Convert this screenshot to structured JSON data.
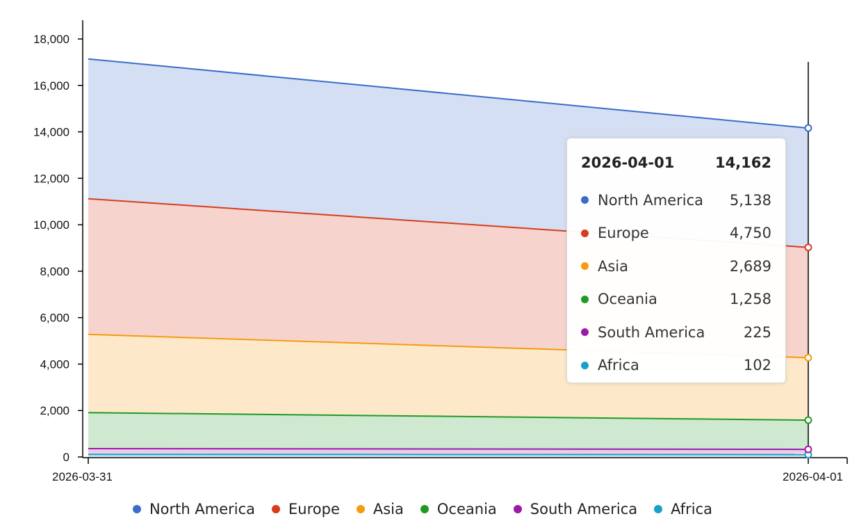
{
  "chart_data": {
    "type": "area",
    "stacked": true,
    "x": [
      "2026-03-31",
      "2026-04-01"
    ],
    "y_ticks": [
      "0",
      "2,000",
      "4,000",
      "6,000",
      "8,000",
      "10,000",
      "12,000",
      "14,000",
      "16,000",
      "18,000"
    ],
    "ylim": [
      0,
      18000
    ],
    "grid": false,
    "legend_position": "bottom",
    "series": [
      {
        "name": "Africa",
        "color": "#1a9fc9",
        "values": [
          110,
          102
        ]
      },
      {
        "name": "South America",
        "color": "#9c1aa6",
        "values": [
          250,
          225
        ]
      },
      {
        "name": "Oceania",
        "color": "#1f9a26",
        "values": [
          1550,
          1258
        ]
      },
      {
        "name": "Asia",
        "color": "#f59b0f",
        "values": [
          3370,
          2689
        ]
      },
      {
        "name": "Europe",
        "color": "#d63d1d",
        "values": [
          5840,
          4750
        ]
      },
      {
        "name": "North America",
        "color": "#3a6cc9",
        "values": [
          6020,
          5138
        ]
      }
    ]
  },
  "tooltip": {
    "date": "2026-04-01",
    "total": "14,162",
    "rows": [
      {
        "name": "North America",
        "value": "5,138",
        "color": "#3a6cc9"
      },
      {
        "name": "Europe",
        "value": "4,750",
        "color": "#d63d1d"
      },
      {
        "name": "Asia",
        "value": "2,689",
        "color": "#f59b0f"
      },
      {
        "name": "Oceania",
        "value": "1,258",
        "color": "#1f9a26"
      },
      {
        "name": "South America",
        "value": "225",
        "color": "#9c1aa6"
      },
      {
        "name": "Africa",
        "value": "102",
        "color": "#1a9fc9"
      }
    ]
  },
  "legend": [
    {
      "name": "North America",
      "color": "#3a6cc9"
    },
    {
      "name": "Europe",
      "color": "#d63d1d"
    },
    {
      "name": "Asia",
      "color": "#f59b0f"
    },
    {
      "name": "Oceania",
      "color": "#1f9a26"
    },
    {
      "name": "South America",
      "color": "#9c1aa6"
    },
    {
      "name": "Africa",
      "color": "#1a9fc9"
    }
  ]
}
